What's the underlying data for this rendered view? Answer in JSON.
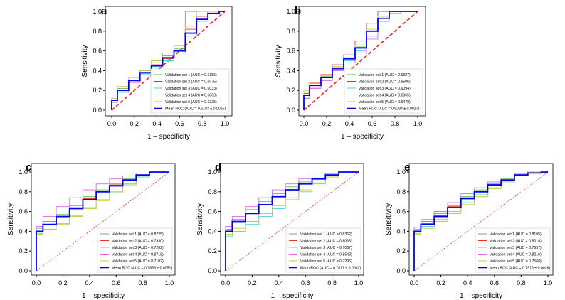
{
  "chart_data": [
    {
      "panel": "a",
      "type": "line",
      "xlabel": "1 – specificity",
      "ylabel": "Sensitivity",
      "xlim": [
        0,
        1
      ],
      "ylim": [
        0,
        1
      ],
      "xticks": [
        "0.0",
        "0.2",
        "0.4",
        "0.6",
        "0.8",
        "1.0"
      ],
      "yticks": [
        "0.0",
        "0.2",
        "0.4",
        "0.6",
        "0.8",
        "1.0"
      ],
      "legend_position": "bottom-right",
      "fpr": [
        0,
        0.1,
        0.2,
        0.3,
        0.4,
        0.5,
        0.6,
        0.7,
        0.8,
        0.9,
        1
      ],
      "series": [
        {
          "name": "Validation set 1 (AUC = 0.6186)",
          "color": "#5cb85c",
          "tpr": [
            0.1,
            0.22,
            0.3,
            0.4,
            0.48,
            0.55,
            0.62,
            1,
            1,
            1,
            1
          ]
        },
        {
          "name": "Validation set 2 (AUC = 0.6075)",
          "color": "#e8312f",
          "tpr": [
            0.08,
            0.2,
            0.28,
            0.38,
            0.46,
            0.52,
            0.6,
            0.82,
            0.95,
            1,
            1
          ]
        },
        {
          "name": "Validation set 3 (AUC = 0.6033)",
          "color": "#4fd3d3",
          "tpr": [
            0.12,
            0.18,
            0.3,
            0.36,
            0.44,
            0.5,
            0.58,
            0.75,
            0.9,
            0.98,
            1
          ]
        },
        {
          "name": "Validation set 4 (AUC = 0.6063)",
          "color": "#e066e0",
          "tpr": [
            0.08,
            0.2,
            0.28,
            0.37,
            0.46,
            0.53,
            0.6,
            0.78,
            0.92,
            0.98,
            1
          ]
        },
        {
          "name": "Validation set 5 (AUC = 0.6325)",
          "color": "#c8c83a",
          "tpr": [
            0.12,
            0.24,
            0.33,
            0.4,
            0.5,
            0.58,
            0.65,
            0.85,
            1,
            1,
            1
          ]
        },
        {
          "name": "Mean ROC (AUC = 0.6103 ± 0.0015)",
          "color": "#0000ff",
          "mean": true,
          "tpr": [
            0.1,
            0.2,
            0.3,
            0.38,
            0.45,
            0.53,
            0.6,
            0.78,
            0.92,
            0.98,
            1
          ]
        }
      ]
    },
    {
      "panel": "b",
      "type": "line",
      "xlabel": "1 – specificity",
      "ylabel": "Sensitivity",
      "xlim": [
        0,
        1
      ],
      "ylim": [
        0,
        1
      ],
      "xticks": [
        "0.0",
        "0.2",
        "0.4",
        "0.6",
        "0.8",
        "1.0"
      ],
      "yticks": [
        "0.0",
        "0.2",
        "0.4",
        "0.6",
        "0.8",
        "1.0"
      ],
      "legend_position": "bottom-right",
      "fpr": [
        0,
        0.1,
        0.2,
        0.3,
        0.4,
        0.5,
        0.6,
        0.7,
        0.8,
        0.9,
        1
      ],
      "series": [
        {
          "name": "Validation set 1 (AUC = 0.6327)",
          "color": "#5cb85c",
          "tpr": [
            0.15,
            0.27,
            0.34,
            0.44,
            0.53,
            0.64,
            0.8,
            0.93,
            1,
            1,
            1
          ]
        },
        {
          "name": "Validation set 2 (AUC = 0.6506)",
          "color": "#e8312f",
          "tpr": [
            0.17,
            0.28,
            0.36,
            0.46,
            0.56,
            0.7,
            0.88,
            1,
            1,
            1,
            1
          ]
        },
        {
          "name": "Validation set 3 (AUC = 0.6094)",
          "color": "#4fd3d3",
          "tpr": [
            0.12,
            0.23,
            0.3,
            0.4,
            0.5,
            0.6,
            0.75,
            0.9,
            1,
            1,
            1
          ]
        },
        {
          "name": "Validation set 4 (AUC = 0.6065)",
          "color": "#e066e0",
          "tpr": [
            0.12,
            0.22,
            0.3,
            0.4,
            0.48,
            0.58,
            0.72,
            0.9,
            0.98,
            1,
            1
          ]
        },
        {
          "name": "Validation set 5 (AUC = 0.6478)",
          "color": "#c8c83a",
          "tpr": [
            0.2,
            0.27,
            0.35,
            0.44,
            0.53,
            0.66,
            0.82,
            0.95,
            1,
            1,
            1
          ]
        },
        {
          "name": "Mean ROC (AUC = 0.6294 ± 0.0017)",
          "color": "#0000ff",
          "mean": true,
          "tpr": [
            0.15,
            0.25,
            0.33,
            0.42,
            0.52,
            0.63,
            0.8,
            0.93,
            1,
            1,
            1
          ]
        }
      ]
    },
    {
      "panel": "c",
      "type": "line",
      "xlabel": "1 – specificity",
      "ylabel": "Sensitivity",
      "xlim": [
        0,
        1
      ],
      "ylim": [
        0,
        1
      ],
      "xticks": [
        "0.0",
        "0.2",
        "0.4",
        "0.6",
        "0.8",
        "1.0"
      ],
      "yticks": [
        "0.0",
        "0.2",
        "0.4",
        "0.6",
        "0.8",
        "1.0"
      ],
      "legend_position": "bottom-right",
      "fpr": [
        0,
        0.1,
        0.2,
        0.3,
        0.4,
        0.5,
        0.6,
        0.7,
        0.8,
        0.9,
        1
      ],
      "series": [
        {
          "name": "Validation set 1 (AUC = 0.8225)",
          "color": "#5cb85c",
          "tpr": [
            0.43,
            0.5,
            0.57,
            0.66,
            0.75,
            0.82,
            0.88,
            0.93,
            0.97,
            1,
            1
          ]
        },
        {
          "name": "Validation set 2 (AUC = 0.7930)",
          "color": "#e8312f",
          "tpr": [
            0.4,
            0.47,
            0.55,
            0.64,
            0.73,
            0.8,
            0.87,
            0.92,
            0.97,
            1,
            1
          ]
        },
        {
          "name": "Validation set 3 (AUC = 0.7202)",
          "color": "#4fd3d3",
          "tpr": [
            0.38,
            0.42,
            0.48,
            0.56,
            0.64,
            0.72,
            0.8,
            0.88,
            0.95,
            1,
            1
          ]
        },
        {
          "name": "Validation set 4 (AUC = 0.8718)",
          "color": "#e066e0",
          "tpr": [
            0.45,
            0.55,
            0.65,
            0.74,
            0.82,
            0.88,
            0.93,
            0.96,
            0.99,
            1,
            1
          ]
        },
        {
          "name": "Validation set 5 (AUC = 0.7102)",
          "color": "#c8c83a",
          "tpr": [
            0.37,
            0.42,
            0.47,
            0.55,
            0.63,
            0.71,
            0.79,
            0.87,
            0.94,
            1,
            1
          ]
        },
        {
          "name": "Mean ROC (AUC = 0.7835 ± 0.0051)",
          "color": "#0000ff",
          "mean": true,
          "tpr": [
            0.4,
            0.47,
            0.55,
            0.63,
            0.72,
            0.8,
            0.86,
            0.92,
            0.97,
            1,
            1
          ]
        }
      ]
    },
    {
      "panel": "d",
      "type": "line",
      "xlabel": "1 – specificity",
      "ylabel": "Sensitivity",
      "xlim": [
        0,
        1
      ],
      "ylim": [
        0,
        1
      ],
      "xticks": [
        "0.0",
        "0.2",
        "0.4",
        "0.6",
        "0.8",
        "1.0"
      ],
      "yticks": [
        "0.0",
        "0.2",
        "0.4",
        "0.6",
        "0.8",
        "1.0"
      ],
      "legend_position": "bottom-right",
      "fpr": [
        0,
        0.1,
        0.2,
        0.3,
        0.4,
        0.5,
        0.6,
        0.7,
        0.8,
        0.9,
        1
      ],
      "series": [
        {
          "name": "Validation set 1 (AUC = 0.8362)",
          "color": "#5cb85c",
          "tpr": [
            0.42,
            0.52,
            0.62,
            0.7,
            0.78,
            0.85,
            0.9,
            0.94,
            0.98,
            1,
            1
          ]
        },
        {
          "name": "Validation set 2 (AUC = 0.8063)",
          "color": "#e8312f",
          "tpr": [
            0.4,
            0.5,
            0.58,
            0.67,
            0.75,
            0.82,
            0.88,
            0.93,
            0.97,
            1,
            1
          ]
        },
        {
          "name": "Validation set 3 (AUC = 0.7067)",
          "color": "#4fd3d3",
          "tpr": [
            0.35,
            0.4,
            0.47,
            0.55,
            0.63,
            0.72,
            0.8,
            0.88,
            0.95,
            1,
            1
          ]
        },
        {
          "name": "Validation set 4 (AUC = 0.8548)",
          "color": "#e066e0",
          "tpr": [
            0.45,
            0.55,
            0.65,
            0.74,
            0.82,
            0.88,
            0.93,
            0.96,
            0.99,
            1,
            1
          ]
        },
        {
          "name": "Validation set 5 (AUC = 0.7296)",
          "color": "#c8c83a",
          "tpr": [
            0.37,
            0.43,
            0.5,
            0.58,
            0.66,
            0.74,
            0.82,
            0.89,
            0.95,
            1,
            1
          ]
        },
        {
          "name": "Mean ROC (AUC = 0.7871 ± 0.0067)",
          "color": "#0000ff",
          "mean": true,
          "tpr": [
            0.4,
            0.5,
            0.58,
            0.67,
            0.75,
            0.82,
            0.88,
            0.93,
            0.97,
            1,
            1
          ]
        }
      ]
    },
    {
      "panel": "e",
      "type": "line",
      "xlabel": "1 – specificity",
      "ylabel": "Sensitivity",
      "xlim": [
        0,
        1
      ],
      "ylim": [
        0,
        1
      ],
      "xticks": [
        "0.0",
        "0.2",
        "0.4",
        "0.6",
        "0.8",
        "1.0"
      ],
      "yticks": [
        "0.0",
        "0.2",
        "0.4",
        "0.6",
        "0.8",
        "1.0"
      ],
      "legend_position": "bottom-right",
      "fpr": [
        0,
        0.1,
        0.2,
        0.3,
        0.4,
        0.5,
        0.6,
        0.7,
        0.8,
        0.9,
        1
      ],
      "series": [
        {
          "name": "Validation set 1 (AUC = 0.8105)",
          "color": "#5cb85c",
          "tpr": [
            0.42,
            0.5,
            0.58,
            0.66,
            0.75,
            0.82,
            0.88,
            0.93,
            0.97,
            1,
            1
          ]
        },
        {
          "name": "Validation set 2 (AUC = 0.8018)",
          "color": "#e8312f",
          "tpr": [
            0.4,
            0.48,
            0.56,
            0.65,
            0.74,
            0.81,
            0.87,
            0.92,
            0.97,
            1,
            1
          ]
        },
        {
          "name": "Validation set 3 (AUC = 0.7657)",
          "color": "#4fd3d3",
          "tpr": [
            0.38,
            0.45,
            0.52,
            0.6,
            0.69,
            0.77,
            0.84,
            0.9,
            0.96,
            1,
            1
          ]
        },
        {
          "name": "Validation set 4 (AUC = 0.8216)",
          "color": "#e066e0",
          "tpr": [
            0.44,
            0.52,
            0.6,
            0.69,
            0.78,
            0.84,
            0.9,
            0.94,
            0.98,
            1,
            1
          ]
        },
        {
          "name": "Validation set 5 (AUC = 0.7568)",
          "color": "#c8c83a",
          "tpr": [
            0.37,
            0.43,
            0.5,
            0.58,
            0.67,
            0.75,
            0.83,
            0.9,
            0.96,
            1,
            1
          ]
        },
        {
          "name": "Mean ROC (AUC = 0.7916 ± 0.0026)",
          "color": "#0000ff",
          "mean": true,
          "tpr": [
            0.4,
            0.47,
            0.55,
            0.64,
            0.73,
            0.8,
            0.87,
            0.92,
            0.97,
            0.99,
            1
          ]
        }
      ]
    }
  ]
}
